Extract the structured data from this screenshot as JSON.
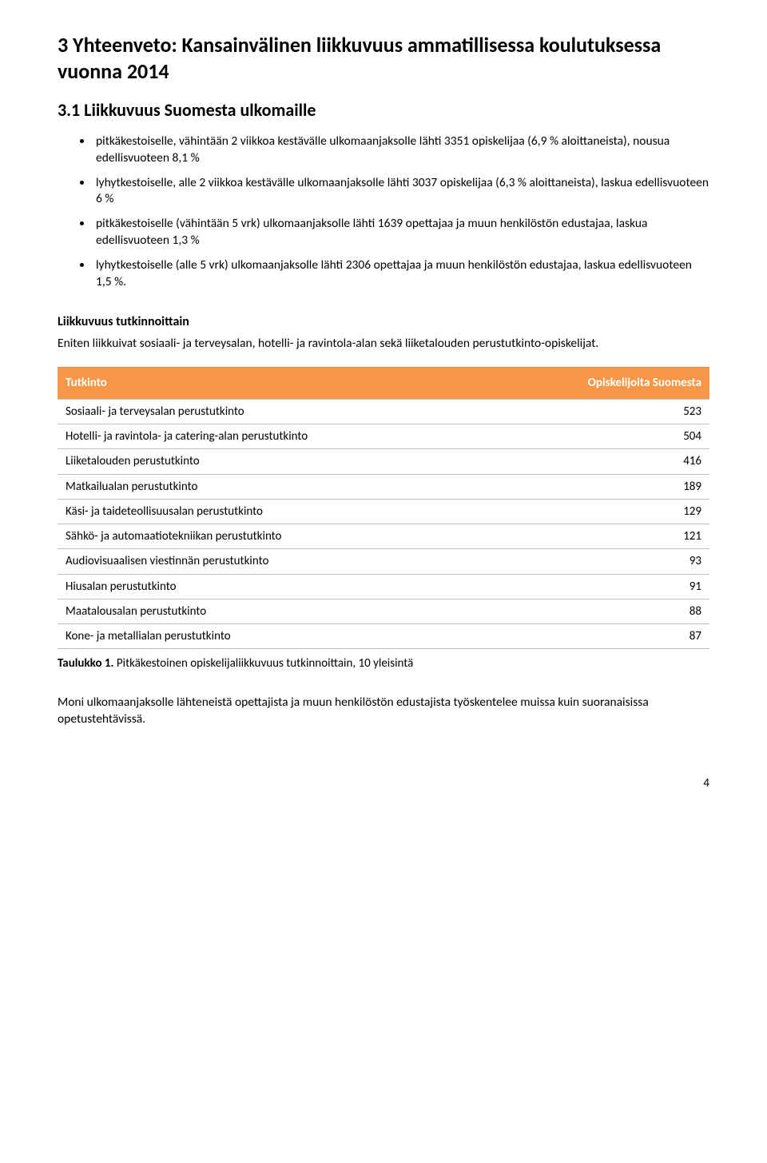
{
  "h1": "3 Yhteenveto: Kansainvälinen liikkuvuus ammatillisessa koulutuksessa vuonna 2014",
  "h2": "3.1 Liikkuvuus Suomesta ulkomaille",
  "bullets": [
    "pitkäkestoiselle, vähintään 2 viikkoa kestävälle ulkomaanjaksolle lähti 3351 opiskelijaa (6,9 % aloittaneista), nousua edellisvuoteen 8,1 %",
    "lyhytkestoiselle, alle 2 viikkoa kestävälle ulkomaanjaksolle lähti 3037 opiskelijaa (6,3 % aloittaneista), laskua edellisvuoteen 6 %",
    "pitkäkestoiselle (vähintään 5 vrk) ulkomaanjaksolle lähti 1639 opettajaa ja muun henkilöstön edustajaa, laskua edellisvuoteen 1,3 %",
    "lyhytkestoiselle (alle 5 vrk) ulkomaanjaksolle lähti 2306 opettajaa ja muun henkilöstön edustajaa, laskua edellisvuoteen 1,5 %."
  ],
  "subsection_title": "Liikkuvuus tutkinnoittain",
  "subsection_body": "Eniten liikkuivat sosiaali- ja terveysalan, hotelli- ja ravintola-alan sekä liiketalouden perustutkinto-opiskelijat.",
  "table": {
    "type": "table",
    "header_bg": "#f79646",
    "header_fg": "#ffffff",
    "row_border": "#bfbfbf",
    "col1_header": "Tutkinto",
    "col2_header": "Opiskelijoita Suomesta",
    "rows": [
      {
        "name": "Sosiaali- ja terveysalan perustutkinto",
        "value": "523"
      },
      {
        "name": "Hotelli- ja ravintola- ja catering-alan perustutkinto",
        "value": "504"
      },
      {
        "name": "Liiketalouden perustutkinto",
        "value": "416"
      },
      {
        "name": "Matkailualan perustutkinto",
        "value": "189"
      },
      {
        "name": "Käsi- ja taideteollisuusalan perustutkinto",
        "value": "129"
      },
      {
        "name": "Sähkö- ja automaatiotekniikan perustutkinto",
        "value": "121"
      },
      {
        "name": "Audiovisuaalisen viestinnän perustutkinto",
        "value": "93"
      },
      {
        "name": "Hiusalan perustutkinto",
        "value": "91"
      },
      {
        "name": "Maatalousalan perustutkinto",
        "value": "88"
      },
      {
        "name": "Kone- ja metallialan perustutkinto",
        "value": "87"
      }
    ]
  },
  "caption_label": "Taulukko 1.",
  "caption_text": " Pitkäkestoinen opiskelijaliikkuvuus tutkinnoittain, 10 yleisintä",
  "closing_text": "Moni ulkomaanjaksolle lähteneistä opettajista ja muun henkilöstön edustajista työskentelee muissa kuin suoranaisissa opetustehtävissä.",
  "page_number": "4"
}
